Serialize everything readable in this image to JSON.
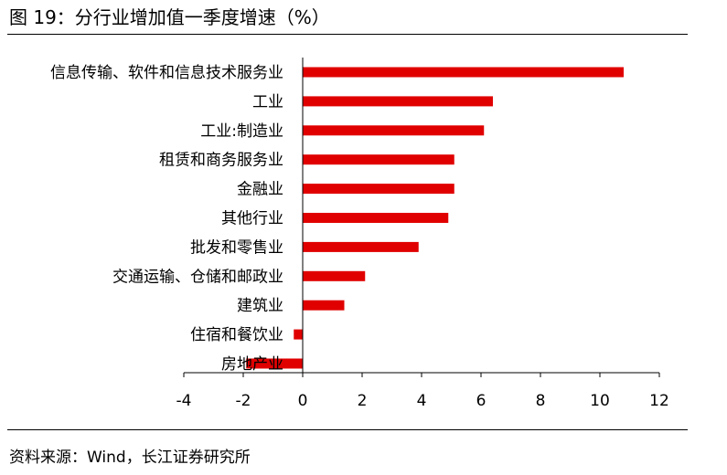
{
  "figure": {
    "title": "图 19：分行业增加值一季度增速（%）",
    "source": "资料来源：Wind，长江证券研究所"
  },
  "chart_data": {
    "type": "bar",
    "orientation": "horizontal",
    "categories": [
      "信息传输、软件和信息技术服务业",
      "工业",
      "工业:制造业",
      "租赁和商务服务业",
      "金融业",
      "其他行业",
      "批发和零售业",
      "交通运输、仓储和邮政业",
      "建筑业",
      "住宿和餐饮业",
      "房地产业"
    ],
    "values": [
      10.8,
      6.4,
      6.1,
      5.1,
      5.1,
      4.9,
      3.9,
      2.1,
      1.4,
      -0.3,
      -1.9
    ],
    "xlim": [
      -4,
      12
    ],
    "xticks": [
      -4,
      -2,
      0,
      2,
      4,
      6,
      8,
      10,
      12
    ],
    "bar_color": "#e00000",
    "grid": false,
    "legend": "none"
  }
}
